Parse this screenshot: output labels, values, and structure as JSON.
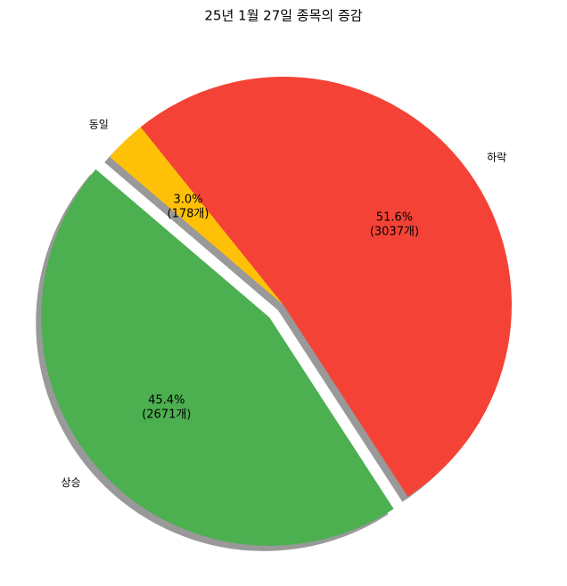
{
  "chart_data": {
    "type": "pie",
    "title": "25년 1월 27일 종목의 증감",
    "categories": [
      "상승",
      "동일",
      "하락"
    ],
    "values": [
      45.4,
      3.0,
      51.6
    ],
    "value_labels": [
      [
        "45.4%",
        "(2671개)"
      ],
      [
        "3.0%",
        "(178개)"
      ],
      [
        "51.6%",
        "(3037개)"
      ]
    ],
    "colors": [
      "#4caf50",
      "#ffc107",
      "#f44336"
    ],
    "explode": [
      true,
      false,
      false
    ],
    "shadow": true
  }
}
